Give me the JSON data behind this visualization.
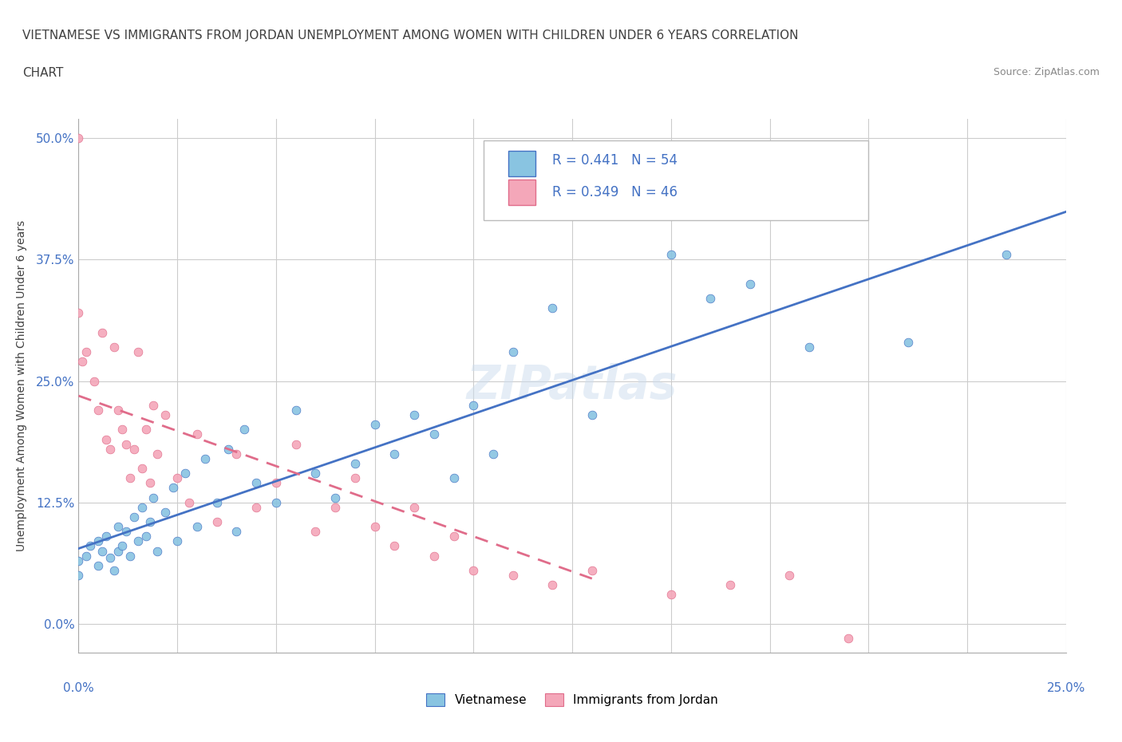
{
  "title_line1": "VIETNAMESE VS IMMIGRANTS FROM JORDAN UNEMPLOYMENT AMONG WOMEN WITH CHILDREN UNDER 6 YEARS CORRELATION",
  "title_line2": "CHART",
  "source": "Source: ZipAtlas.com",
  "ylabel": "Unemployment Among Women with Children Under 6 years",
  "xmin": 0.0,
  "xmax": 0.25,
  "ymin": -0.03,
  "ymax": 0.52,
  "watermark": "ZIPatlas",
  "legend_r1": "R = 0.441   N = 54",
  "legend_r2": "R = 0.349   N = 46",
  "color_vietnamese": "#89C4E1",
  "color_jordan": "#F4A7B9",
  "color_line_vietnamese": "#4472C4",
  "color_line_jordan": "#E06C8A",
  "title_color": "#404040",
  "tick_color": "#4472C4",
  "vietnamese_x": [
    0.0,
    0.0,
    0.002,
    0.003,
    0.005,
    0.005,
    0.006,
    0.007,
    0.008,
    0.009,
    0.01,
    0.01,
    0.011,
    0.012,
    0.013,
    0.014,
    0.015,
    0.016,
    0.017,
    0.018,
    0.019,
    0.02,
    0.022,
    0.024,
    0.025,
    0.027,
    0.03,
    0.032,
    0.035,
    0.038,
    0.04,
    0.042,
    0.045,
    0.05,
    0.055,
    0.06,
    0.065,
    0.07,
    0.075,
    0.08,
    0.085,
    0.09,
    0.095,
    0.1,
    0.105,
    0.11,
    0.12,
    0.13,
    0.15,
    0.16,
    0.17,
    0.185,
    0.21,
    0.235
  ],
  "vietnamese_y": [
    0.065,
    0.05,
    0.07,
    0.08,
    0.06,
    0.085,
    0.075,
    0.09,
    0.068,
    0.055,
    0.075,
    0.1,
    0.08,
    0.095,
    0.07,
    0.11,
    0.085,
    0.12,
    0.09,
    0.105,
    0.13,
    0.075,
    0.115,
    0.14,
    0.085,
    0.155,
    0.1,
    0.17,
    0.125,
    0.18,
    0.095,
    0.2,
    0.145,
    0.125,
    0.22,
    0.155,
    0.13,
    0.165,
    0.205,
    0.175,
    0.215,
    0.195,
    0.15,
    0.225,
    0.175,
    0.28,
    0.325,
    0.215,
    0.38,
    0.335,
    0.35,
    0.285,
    0.29,
    0.38
  ],
  "jordan_x": [
    0.0,
    0.0,
    0.001,
    0.002,
    0.004,
    0.005,
    0.006,
    0.007,
    0.008,
    0.009,
    0.01,
    0.011,
    0.012,
    0.013,
    0.014,
    0.015,
    0.016,
    0.017,
    0.018,
    0.019,
    0.02,
    0.022,
    0.025,
    0.028,
    0.03,
    0.035,
    0.04,
    0.045,
    0.05,
    0.055,
    0.06,
    0.065,
    0.07,
    0.075,
    0.08,
    0.085,
    0.09,
    0.095,
    0.1,
    0.11,
    0.12,
    0.13,
    0.15,
    0.165,
    0.18,
    0.195
  ],
  "jordan_y": [
    0.5,
    0.32,
    0.27,
    0.28,
    0.25,
    0.22,
    0.3,
    0.19,
    0.18,
    0.285,
    0.22,
    0.2,
    0.185,
    0.15,
    0.18,
    0.28,
    0.16,
    0.2,
    0.145,
    0.225,
    0.175,
    0.215,
    0.15,
    0.125,
    0.195,
    0.105,
    0.175,
    0.12,
    0.145,
    0.185,
    0.095,
    0.12,
    0.15,
    0.1,
    0.08,
    0.12,
    0.07,
    0.09,
    0.055,
    0.05,
    0.04,
    0.055,
    0.03,
    0.04,
    0.05,
    -0.015
  ]
}
